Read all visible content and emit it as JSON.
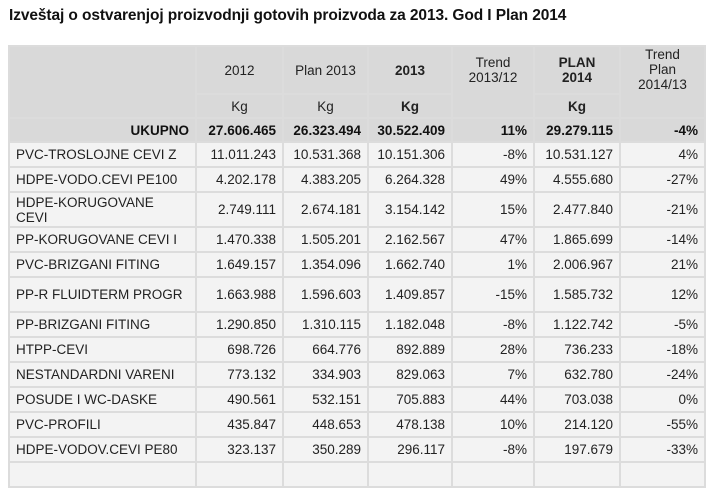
{
  "title": "Izveštaj o ostvarenjoj proizvodnji gotovih proizvoda za 2013. God I Plan 2014",
  "headers": {
    "c2012": "2012",
    "plan2013": "Plan 2013",
    "c2013": "2013",
    "trend1": "Trend 2013/12",
    "plan2014_a": "PLAN",
    "plan2014_b": "2014",
    "trend2_a": "Trend",
    "trend2_b": "Plan",
    "trend2_c": "2014/13",
    "unit": "Kg"
  },
  "total": {
    "label": "UKUPNO",
    "v2012": "27.606.465",
    "plan2013": "26.323.494",
    "v2013": "30.522.409",
    "trend": "11%",
    "plan2014": "29.279.115",
    "trend2": "-4%"
  },
  "rows": [
    [
      "PVC-TROSLOJNE CEVI Z",
      "11.011.243",
      "10.531.368",
      "10.151.306",
      "-8%",
      "10.531.127",
      "4%"
    ],
    [
      "HDPE-VODO.CEVI PE100",
      "4.202.178",
      "4.383.205",
      "6.264.328",
      "49%",
      "4.555.680",
      "-27%"
    ],
    [
      "HDPE-KORUGOVANE CEVI",
      "2.749.111",
      "2.674.181",
      "3.154.142",
      "15%",
      "2.477.840",
      "-21%"
    ],
    [
      "PP-KORUGOVANE CEVI I",
      "1.470.338",
      "1.505.201",
      "2.162.567",
      "47%",
      "1.865.699",
      "-14%"
    ],
    [
      "PVC-BRIZGANI FITING",
      "1.649.157",
      "1.354.096",
      "1.662.740",
      "1%",
      "2.006.967",
      "21%"
    ],
    [
      "PP-R FLUIDTERM PROGR",
      "1.663.988",
      "1.596.603",
      "1.409.857",
      "-15%",
      "1.585.732",
      "12%"
    ],
    [
      "PP-BRIZGANI FITING",
      "1.290.850",
      "1.310.115",
      "1.182.048",
      "-8%",
      "1.122.742",
      "-5%"
    ],
    [
      "HTPP-CEVI",
      "698.726",
      "664.776",
      "892.889",
      "28%",
      "736.233",
      "-18%"
    ],
    [
      "NESTANDARDNI VARENI",
      "773.132",
      "334.903",
      "829.063",
      "7%",
      "632.780",
      "-24%"
    ],
    [
      "POSUDE I WC-DASKE",
      "490.561",
      "532.151",
      "705.883",
      "44%",
      "703.038",
      "0%"
    ],
    [
      "PVC-PROFILI",
      "435.847",
      "448.653",
      "478.138",
      "10%",
      "214.120",
      "-55%"
    ],
    [
      "HDPE-VODOV.CEVI PE80",
      "323.137",
      "350.289",
      "296.117",
      "-8%",
      "197.679",
      "-33%"
    ],
    [
      "",
      "",
      "",
      "",
      "",
      "",
      ""
    ]
  ]
}
